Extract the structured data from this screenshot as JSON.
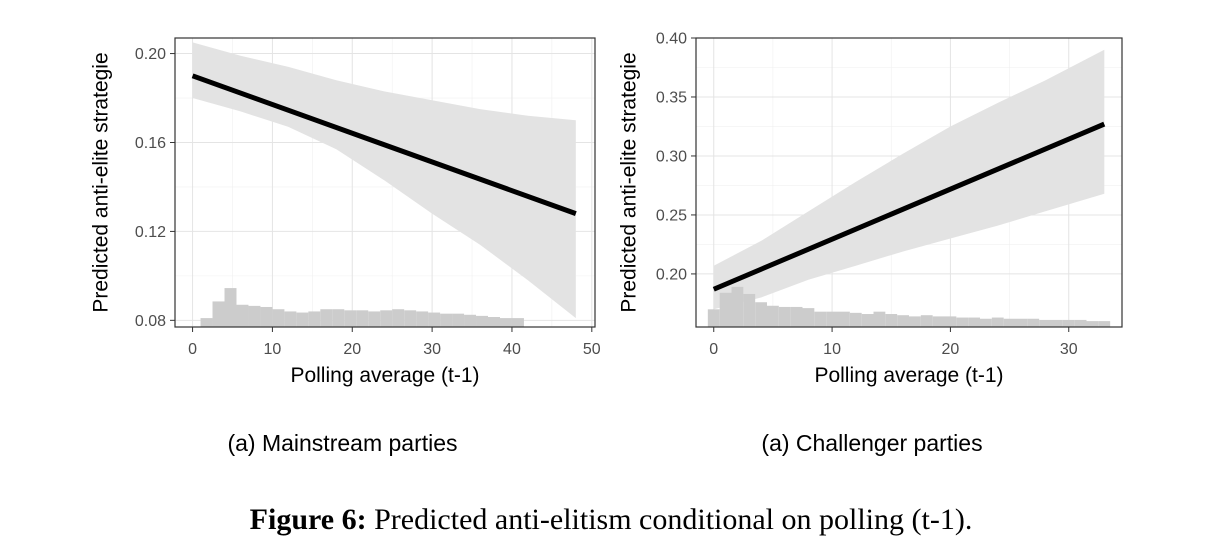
{
  "figure": {
    "label": "Figure 6:",
    "text": "Predicted anti-elitism conditional on polling (t-1)."
  },
  "chart_data": [
    {
      "type": "line",
      "subtitle": "(a) Mainstream parties",
      "xlabel": "Polling average (t-1)",
      "ylabel": "Predicted anti-elite strategie",
      "xlim": [
        -2.2,
        50.4
      ],
      "ylim": [
        0.077,
        0.207
      ],
      "xticks": [
        0,
        10,
        20,
        30,
        40,
        50
      ],
      "xticklabels": [
        "0",
        "10",
        "20",
        "30",
        "40",
        "50"
      ],
      "yticks": [
        0.08,
        0.12,
        0.16,
        0.2
      ],
      "yticklabels": [
        "0.08",
        "0.12",
        "0.16",
        "0.20"
      ],
      "grid": true,
      "line": {
        "x": [
          0,
          48
        ],
        "y": [
          0.19,
          0.128
        ]
      },
      "ribbon": {
        "x": [
          0,
          6,
          12,
          18,
          24,
          30,
          36,
          42,
          48
        ],
        "lower": [
          0.18,
          0.174,
          0.167,
          0.157,
          0.143,
          0.128,
          0.114,
          0.098,
          0.081
        ],
        "upper": [
          0.205,
          0.199,
          0.194,
          0.188,
          0.183,
          0.179,
          0.175,
          0.172,
          0.17
        ]
      },
      "histogram": {
        "edges": [
          1,
          2.5,
          4,
          5.5,
          7,
          8.5,
          10,
          11.5,
          13,
          14.5,
          16,
          17.5,
          19,
          20.5,
          22,
          23.5,
          25,
          26.5,
          28,
          29.5,
          31,
          32.5,
          34,
          35.5,
          37,
          38.5,
          40,
          41.5
        ],
        "heights": [
          0.081,
          0.0885,
          0.0945,
          0.087,
          0.0865,
          0.086,
          0.085,
          0.084,
          0.0835,
          0.084,
          0.085,
          0.085,
          0.0845,
          0.0845,
          0.084,
          0.0845,
          0.085,
          0.0845,
          0.084,
          0.0835,
          0.083,
          0.083,
          0.0825,
          0.082,
          0.0815,
          0.081,
          0.081
        ]
      }
    },
    {
      "type": "line",
      "subtitle": "(a) Challenger parties",
      "xlabel": "Polling average (t-1)",
      "ylabel": "Predicted anti-elite strategie",
      "xlim": [
        -1.5,
        34.5
      ],
      "ylim": [
        0.155,
        0.4
      ],
      "xticks": [
        0,
        10,
        20,
        30
      ],
      "xticklabels": [
        "0",
        "10",
        "20",
        "30"
      ],
      "yticks": [
        0.2,
        0.25,
        0.3,
        0.35,
        0.4
      ],
      "yticklabels": [
        "0.20",
        "0.25",
        "0.30",
        "0.35",
        "0.40"
      ],
      "grid": true,
      "line": {
        "x": [
          0,
          33
        ],
        "y": [
          0.187,
          0.327
        ]
      },
      "ribbon": {
        "x": [
          0,
          4,
          8,
          12,
          16,
          20,
          24,
          28,
          33
        ],
        "lower": [
          0.17,
          0.18,
          0.195,
          0.207,
          0.219,
          0.23,
          0.241,
          0.253,
          0.268
        ],
        "upper": [
          0.207,
          0.228,
          0.253,
          0.278,
          0.302,
          0.325,
          0.345,
          0.364,
          0.39
        ]
      },
      "histogram": {
        "edges": [
          -0.5,
          0.5,
          1.5,
          2.5,
          3.5,
          4.5,
          5.5,
          6.5,
          7.5,
          8.5,
          9.5,
          10.5,
          11.5,
          12.5,
          13.5,
          14.5,
          15.5,
          16.5,
          17.5,
          18.5,
          19.5,
          20.5,
          21.5,
          22.5,
          23.5,
          24.5,
          25.5,
          26.5,
          27.5,
          28.5,
          29.5,
          30.5,
          31.5,
          32.5,
          33.5
        ],
        "heights": [
          0.17,
          0.184,
          0.189,
          0.183,
          0.176,
          0.173,
          0.172,
          0.172,
          0.171,
          0.168,
          0.168,
          0.168,
          0.167,
          0.166,
          0.168,
          0.166,
          0.165,
          0.164,
          0.165,
          0.164,
          0.164,
          0.163,
          0.163,
          0.162,
          0.163,
          0.162,
          0.162,
          0.162,
          0.161,
          0.161,
          0.161,
          0.161,
          0.16,
          0.16
        ]
      }
    }
  ]
}
